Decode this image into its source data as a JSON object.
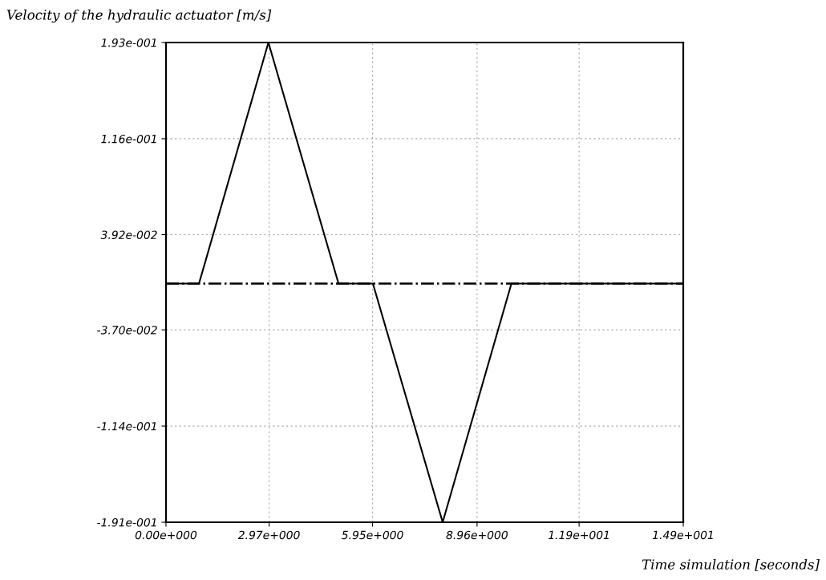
{
  "chart_data": {
    "type": "line",
    "ylabel": "Velocity of the hydraulic actuator [m/s]",
    "xlabel": "Time simulation [seconds]",
    "x": [
      0,
      0.95,
      2.95,
      4.97,
      5.96,
      7.97,
      9.95,
      14.9
    ],
    "series": [
      {
        "color": "#000000",
        "values": [
          0,
          0,
          0.193,
          0,
          0,
          -0.191,
          0,
          0
        ]
      }
    ],
    "xlim": [
      0,
      14.9
    ],
    "ylim": [
      -0.191,
      0.193
    ],
    "xticks": [
      {
        "value": 0,
        "label": "0.00e+000"
      },
      {
        "value": 2.97,
        "label": "2.97e+000"
      },
      {
        "value": 5.95,
        "label": "5.95e+000"
      },
      {
        "value": 8.96,
        "label": "8.96e+000"
      },
      {
        "value": 11.9,
        "label": "1.19e+001"
      },
      {
        "value": 14.9,
        "label": "1.49e+001"
      }
    ],
    "yticks": [
      {
        "value": -0.191,
        "label": "-1.91e-001"
      },
      {
        "value": -0.114,
        "label": "-1.14e-001"
      },
      {
        "value": -0.037,
        "label": "-3.70e-002"
      },
      {
        "value": 0.0392,
        "label": "3.92e-002"
      },
      {
        "value": 0.116,
        "label": "1.16e-001"
      },
      {
        "value": 0.193,
        "label": "1.93e-001"
      }
    ],
    "ref_lines": [
      {
        "axis": "y",
        "value": 0,
        "color": "#000000",
        "line_style": "dashdot"
      }
    ],
    "grid": true,
    "legend": false,
    "marker": "none",
    "line_style": "solid"
  }
}
